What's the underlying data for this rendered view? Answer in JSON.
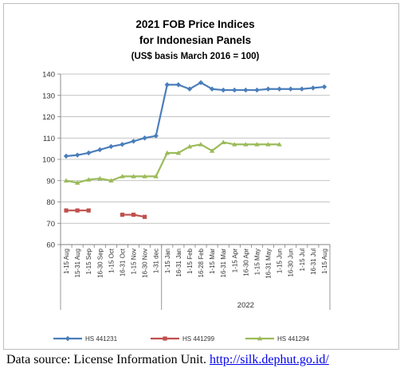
{
  "chart_data": {
    "type": "line",
    "title_lines": [
      "2021 FOB Price Indices",
      "for Indonesian Panels",
      "(US$ basis March 2016 = 100)"
    ],
    "categories": [
      "1-15 Aug",
      "15-31 Aug",
      "1-15 Sep",
      "16-30 Sep",
      "1-15 Oct",
      "16-31 Oct",
      "1-15 Nov",
      "16-30 Nov",
      "1-31 dec",
      "1-15 Jan",
      "16-31 Jan",
      "1-15 Feb",
      "16-28 Feb",
      "1-15 Mar",
      "16-31 Mar",
      "1-15 Apr",
      "16-30 Apr",
      "1-15 May",
      "16-31 May",
      "1-15 Jun",
      "16-30 Jun",
      "1-15 Jul",
      "16-31 Jul",
      "1-15 Aug"
    ],
    "year_group_label": "2022",
    "ylim": [
      60,
      140
    ],
    "ytick_step": 10,
    "grid": true,
    "legend_position": "bottom",
    "series": [
      {
        "name": "HS 441231",
        "color": "#4a7ebb",
        "marker": "diamond",
        "values": [
          101.5,
          102,
          103,
          104.5,
          106,
          107,
          108.5,
          110,
          111,
          135,
          135,
          133,
          136,
          133,
          132.5,
          132.5,
          132.5,
          132.5,
          133,
          133,
          133,
          133,
          133.5,
          134
        ]
      },
      {
        "name": "HS 441299",
        "color": "#c0504d",
        "marker": "square",
        "values": [
          76,
          76,
          76,
          null,
          null,
          74,
          74,
          73,
          null,
          null,
          null,
          null,
          null,
          null,
          null,
          null,
          null,
          null,
          null,
          null,
          null,
          null,
          null,
          null
        ]
      },
      {
        "name": "HS 441294",
        "color": "#9bbb59",
        "marker": "triangle",
        "values": [
          90,
          89,
          90.5,
          91,
          90,
          92,
          92,
          92,
          92,
          103,
          103,
          106,
          107,
          104,
          108,
          107,
          107,
          107,
          107,
          107,
          null,
          null,
          null,
          null
        ]
      }
    ]
  },
  "footer": {
    "prefix": "Data source: License Information Unit. ",
    "link": "http://silk.dephut.go.id/"
  }
}
